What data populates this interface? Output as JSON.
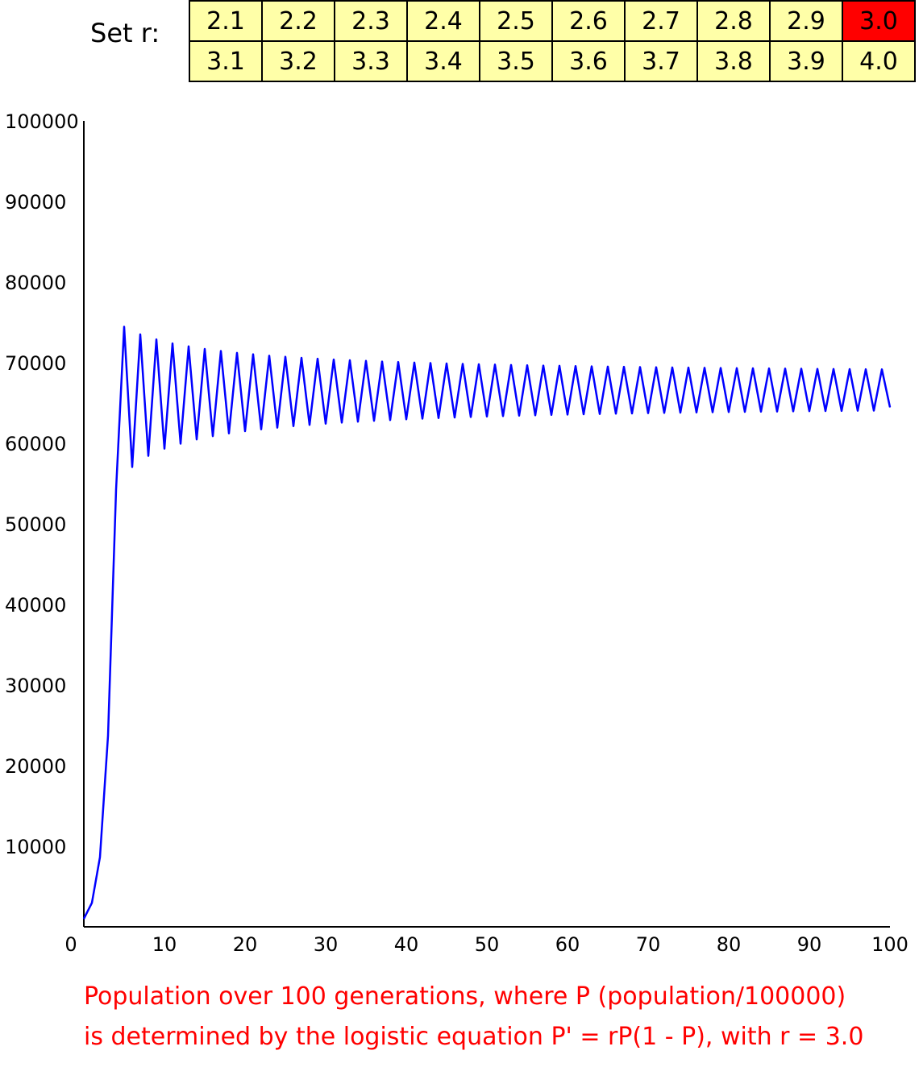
{
  "controls": {
    "label": "Set r:",
    "selected": "3.0",
    "rows": [
      [
        "2.1",
        "2.2",
        "2.3",
        "2.4",
        "2.5",
        "2.6",
        "2.7",
        "2.8",
        "2.9",
        "3.0"
      ],
      [
        "3.1",
        "3.2",
        "3.3",
        "3.4",
        "3.5",
        "3.6",
        "3.7",
        "3.8",
        "3.9",
        "4.0"
      ]
    ],
    "selected_color": "#ff0000",
    "cell_color": "#ffffa8"
  },
  "caption": {
    "line1": "Population over 100 generations, where P (population/100000)",
    "line2": "is determined by the logistic equation P' = rP(1 - P), with r = 3.0",
    "color": "#ff0000"
  },
  "chart_data": {
    "type": "line",
    "title": "",
    "xlabel": "",
    "ylabel": "",
    "xlim": [
      0,
      100
    ],
    "ylim": [
      0,
      100000
    ],
    "xticks": [
      0,
      10,
      20,
      30,
      40,
      50,
      60,
      70,
      80,
      90,
      100
    ],
    "yticks": [
      10000,
      20000,
      30000,
      40000,
      50000,
      60000,
      70000,
      80000,
      90000,
      100000
    ],
    "grid": false,
    "line_color": "#0000ff",
    "r": 3.0,
    "x": [
      0,
      1,
      2,
      3,
      4,
      5,
      6,
      7,
      8,
      9,
      10,
      11,
      12,
      13,
      14,
      15,
      16,
      17,
      18,
      19,
      20,
      21,
      22,
      23,
      24,
      25,
      26,
      27,
      28,
      29,
      30,
      31,
      32,
      33,
      34,
      35,
      36,
      37,
      38,
      39,
      40,
      41,
      42,
      43,
      44,
      45,
      46,
      47,
      48,
      49,
      50,
      51,
      52,
      53,
      54,
      55,
      56,
      57,
      58,
      59,
      60,
      61,
      62,
      63,
      64,
      65,
      66,
      67,
      68,
      69,
      70,
      71,
      72,
      73,
      74,
      75,
      76,
      77,
      78,
      79,
      80,
      81,
      82,
      83,
      84,
      85,
      86,
      87,
      88,
      89,
      90,
      91,
      92,
      93,
      94,
      95,
      96,
      97,
      98,
      99,
      100
    ],
    "series": [
      {
        "values": [
          1000,
          2970,
          8644,
          23708,
          54261,
          74459,
          57053,
          73509,
          58443,
          72887,
          59331,
          72390,
          59954,
          72028,
          60480,
          71705,
          60881,
          71450,
          61221,
          71218,
          61495,
          71039,
          61732,
          70868,
          61937,
          70732,
          62122,
          70600,
          62282,
          70493,
          62432,
          70392,
          62564,
          70299,
          62681,
          70221,
          62789,
          70141,
          62882,
          70082,
          62974,
          70011,
          63052,
          69957,
          63128,
          69898,
          63197,
          69852,
          63262,
          69802,
          63320,
          69760,
          63374,
          69716,
          63426,
          69679,
          63471,
          69641,
          63519,
          69608,
          63557,
          69574,
          63598,
          69544,
          63633,
          69514,
          63671,
          69486,
          63702,
          69458,
          63735,
          69432,
          63766,
          69407,
          63792,
          69385,
          63823,
          69361,
          63846,
          69340,
          63873,
          69319,
          63895,
          69301,
          63920,
          69281,
          63939,
          69263,
          63961,
          69246,
          63980,
          69229,
          64001,
          69212,
          64017,
          69197,
          64036,
          69182,
          64053,
          69168,
          64470
        ]
      }
    ]
  }
}
